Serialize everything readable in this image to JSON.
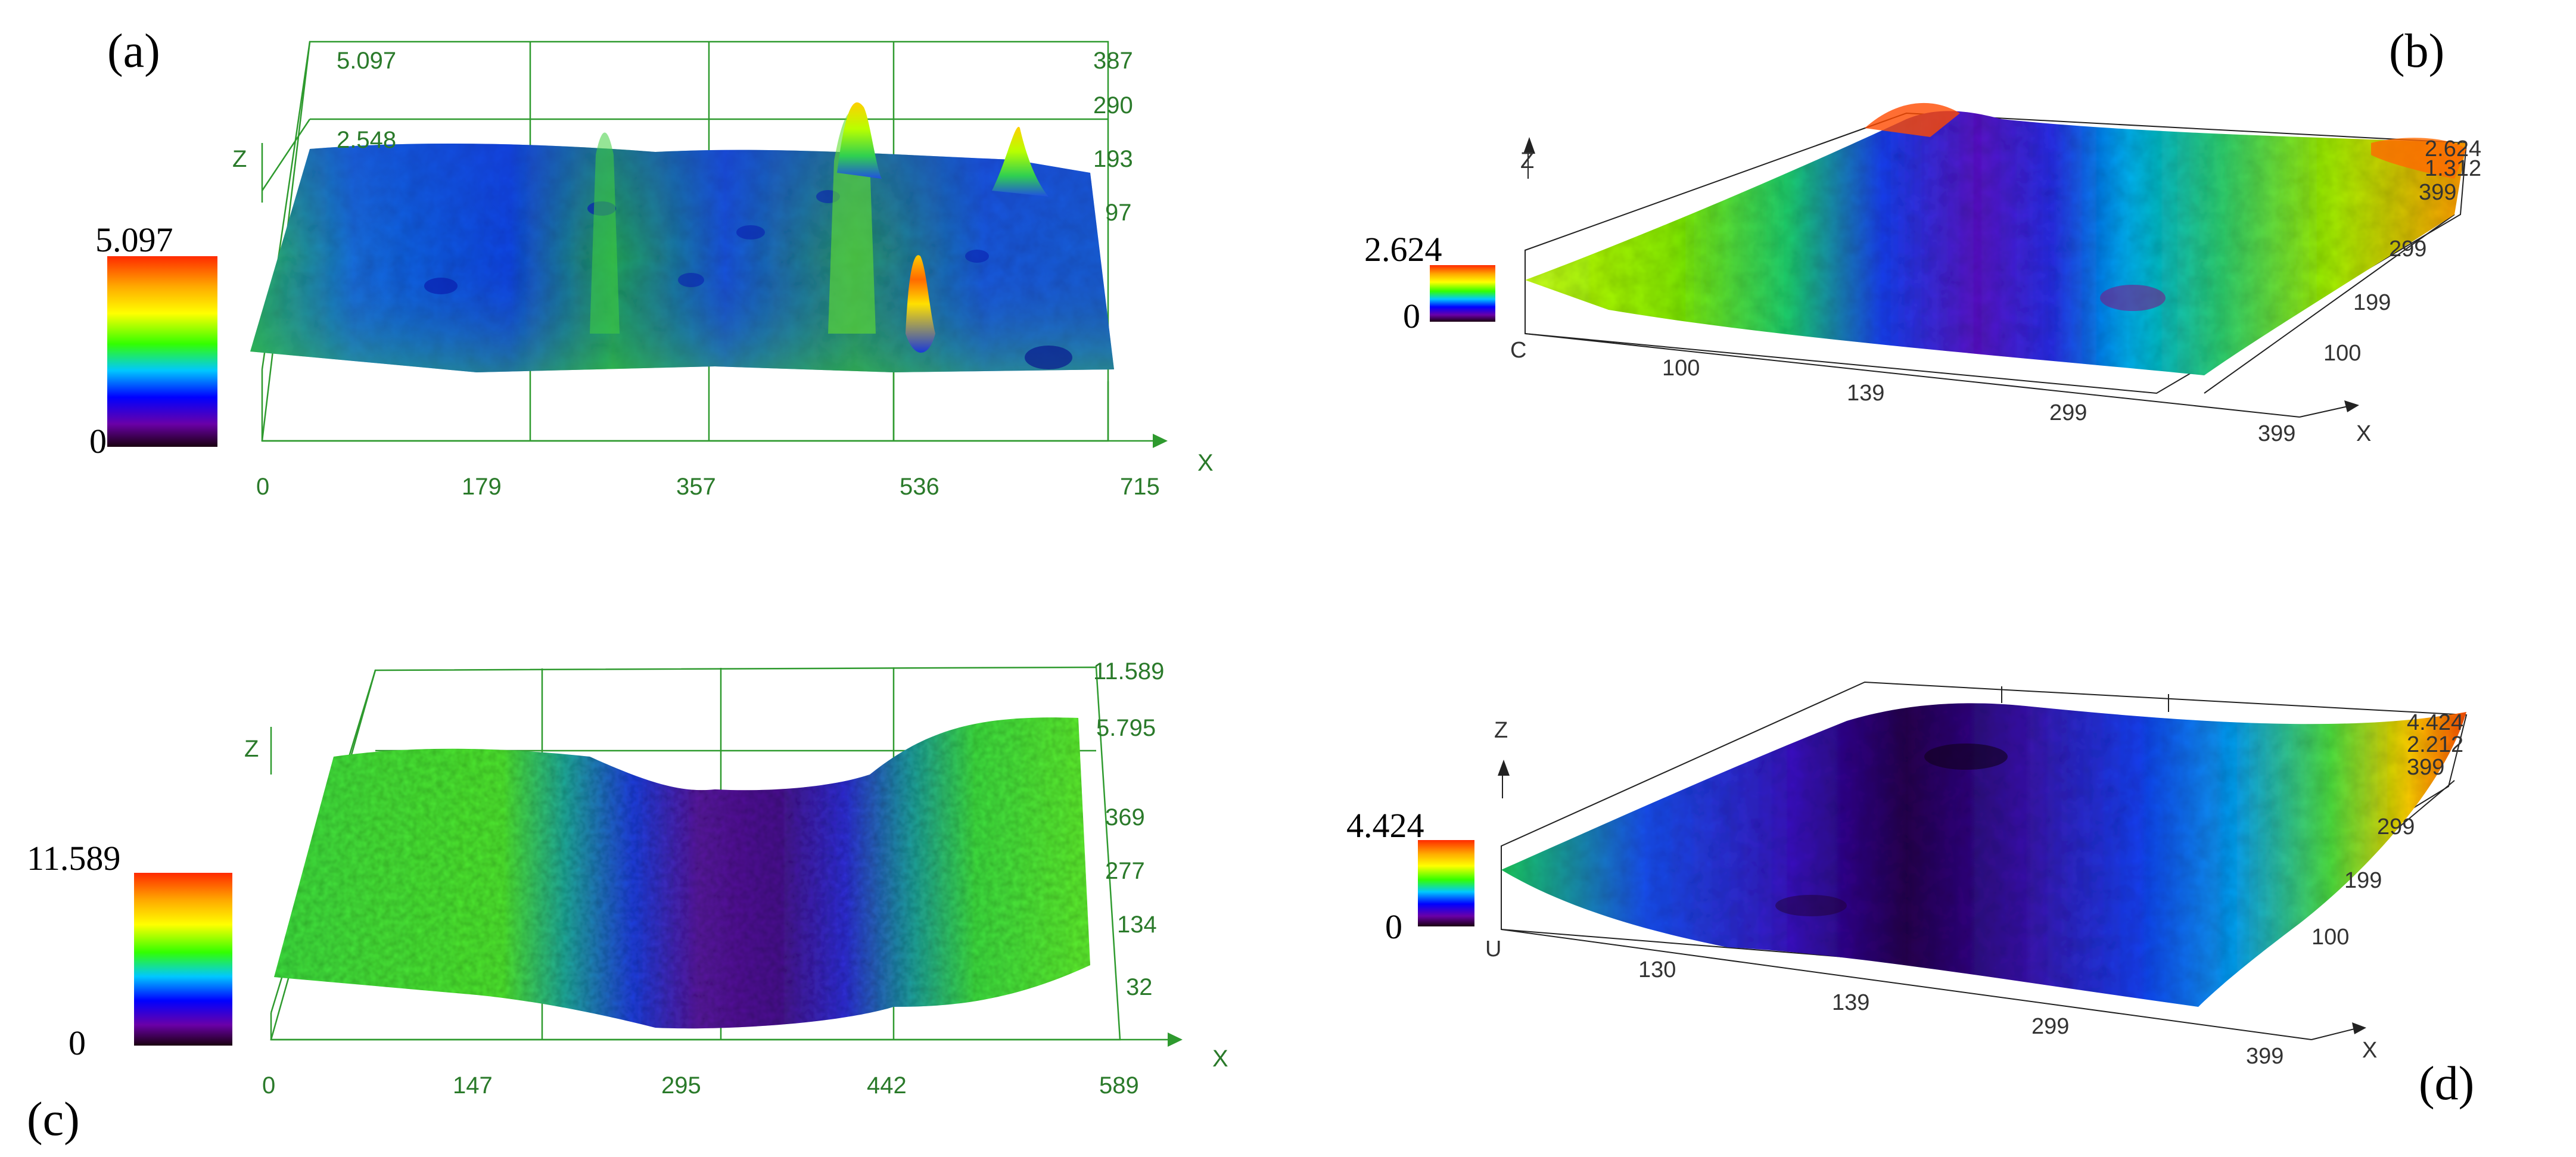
{
  "colors": {
    "axis_green": "#2e9a2e",
    "tick_green": "#2a7a2a",
    "axis_dark": "#222222"
  },
  "chart_data": [
    {
      "type": "surface3d",
      "panel": "(a)",
      "axes": {
        "x": "X",
        "z": "Z"
      },
      "colorbar": {
        "max": "5.097",
        "min": "0"
      },
      "x_ticks": [
        "0",
        "179",
        "357",
        "536",
        "715"
      ],
      "z_ticks": [
        "5.097",
        "2.548"
      ],
      "y_ticks": [
        "387",
        "290",
        "193",
        "97"
      ]
    },
    {
      "type": "surface3d",
      "panel": "(b)",
      "axes": {
        "x": "X",
        "z": "Z"
      },
      "colorbar": {
        "max": "2.624",
        "min": "0"
      },
      "x_ticks": [
        "C",
        "100",
        "139",
        "299",
        "399"
      ],
      "z_ticks": [
        "2.624",
        "1.312"
      ],
      "y_ticks": [
        "399",
        "299",
        "199",
        "100"
      ]
    },
    {
      "type": "surface3d",
      "panel": "(c)",
      "axes": {
        "x": "X",
        "z": "Z"
      },
      "colorbar": {
        "max": "11.589",
        "min": "0"
      },
      "x_ticks": [
        "0",
        "147",
        "295",
        "442",
        "589"
      ],
      "z_ticks": [
        "11.589",
        "5.795"
      ],
      "y_ticks": [
        "369",
        "277",
        "134",
        "32"
      ]
    },
    {
      "type": "surface3d",
      "panel": "(d)",
      "axes": {
        "x": "X",
        "z": "Z"
      },
      "colorbar": {
        "max": "4.424",
        "min": "0"
      },
      "x_ticks": [
        "U",
        "130",
        "139",
        "299",
        "399"
      ],
      "z_ticks": [
        "4.424",
        "2.212"
      ],
      "y_ticks": [
        "399",
        "299",
        "199",
        "100"
      ]
    }
  ]
}
